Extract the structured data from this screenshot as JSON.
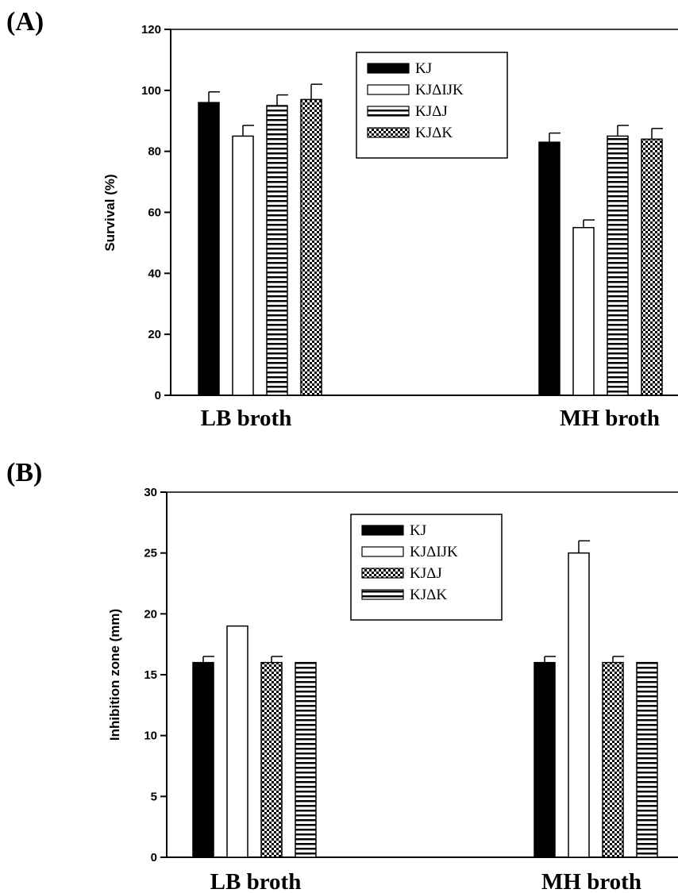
{
  "chart_data": [
    {
      "panel": "(A)",
      "type": "bar",
      "ylabel": "Survival (%)",
      "ylim": [
        0,
        120
      ],
      "yticks": [
        0,
        20,
        40,
        60,
        80,
        100,
        120
      ],
      "categories": [
        "LB broth",
        "MH broth"
      ],
      "series": [
        {
          "name": "KJ",
          "pattern": "solid",
          "values": [
            96,
            83
          ],
          "errors": [
            3.5,
            3
          ]
        },
        {
          "name": "KJΔIJK",
          "pattern": "open",
          "values": [
            85,
            55
          ],
          "errors": [
            3.5,
            2.5
          ]
        },
        {
          "name": "KJΔJ",
          "pattern": "hstripe",
          "values": [
            95,
            85
          ],
          "errors": [
            3.5,
            3.5
          ]
        },
        {
          "name": "KJΔK",
          "pattern": "crosshatch",
          "values": [
            97,
            84
          ],
          "errors": [
            5,
            3.5
          ]
        }
      ],
      "legend_position": "top-center"
    },
    {
      "panel": "(B)",
      "type": "bar",
      "ylabel": "Inhibition zone (mm)",
      "ylim": [
        0,
        30
      ],
      "yticks": [
        0,
        5,
        10,
        15,
        20,
        25,
        30
      ],
      "categories": [
        "LB broth",
        "MH broth"
      ],
      "series": [
        {
          "name": "KJ",
          "pattern": "solid",
          "values": [
            16,
            16
          ],
          "errors": [
            0.5,
            0.5
          ]
        },
        {
          "name": "KJΔIJK",
          "pattern": "open",
          "values": [
            19,
            25
          ],
          "errors": [
            0,
            1
          ]
        },
        {
          "name": "KJΔJ",
          "pattern": "crosshatch",
          "values": [
            16,
            16
          ],
          "errors": [
            0.5,
            0.5
          ]
        },
        {
          "name": "KJΔK",
          "pattern": "hstripe",
          "values": [
            16,
            16
          ],
          "errors": [
            0,
            0
          ]
        }
      ],
      "legend_position": "top-center"
    }
  ]
}
